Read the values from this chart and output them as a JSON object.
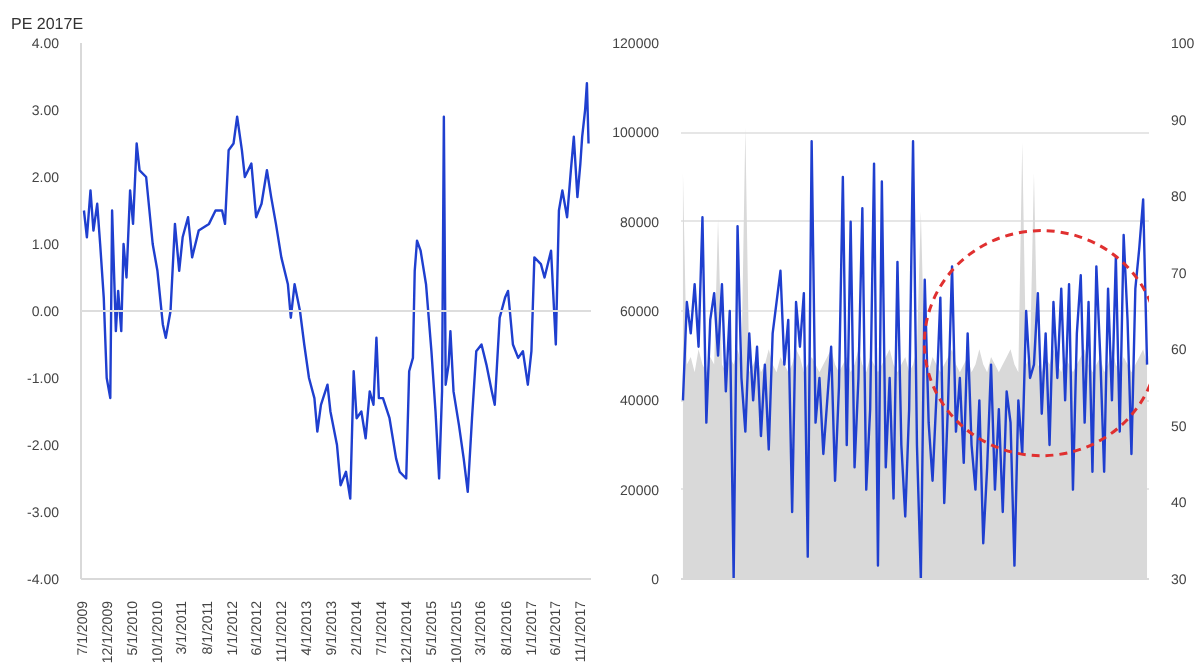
{
  "chart_data": [
    {
      "type": "line",
      "title": "PE 2017E",
      "x": [
        "2009-07-01",
        "2009-07-19",
        "2009-08-10",
        "2009-08-28",
        "2009-09-20",
        "2009-10-08",
        "2009-10-30",
        "2009-11-17",
        "2009-12-09",
        "2009-12-20",
        "2010-01-12",
        "2010-01-26",
        "2010-02-14",
        "2010-02-28",
        "2010-03-18",
        "2010-04-09",
        "2010-04-27",
        "2010-05-19",
        "2010-06-06",
        "2010-07-16",
        "2010-08-25",
        "2010-09-23",
        "2010-10-26",
        "2010-11-13",
        "2010-12-12",
        "2011-01-08",
        "2011-02-03",
        "2011-02-24",
        "2011-03-29",
        "2011-04-23",
        "2011-06-02",
        "2011-08-04",
        "2011-09-13",
        "2011-10-23",
        "2011-11-10",
        "2011-12-02",
        "2012-01-01",
        "2012-01-23",
        "2012-02-21",
        "2012-03-10",
        "2012-04-19",
        "2012-05-18",
        "2012-06-20",
        "2012-07-23",
        "2012-08-18",
        "2012-09-16",
        "2012-10-19",
        "2012-11-28",
        "2012-12-16",
        "2013-01-08",
        "2013-02-10",
        "2013-03-08",
        "2013-04-06",
        "2013-05-09",
        "2013-05-27",
        "2013-06-18",
        "2013-07-28",
        "2013-08-15",
        "2013-09-24",
        "2013-10-16",
        "2013-11-18",
        "2013-12-14",
        "2014-01-04",
        "2014-01-22",
        "2014-02-20",
        "2014-03-18",
        "2014-04-12",
        "2014-05-05",
        "2014-05-23",
        "2014-06-07",
        "2014-07-02",
        "2014-08-11",
        "2014-09-20",
        "2014-10-12",
        "2014-11-21",
        "2014-12-09",
        "2015-01-01",
        "2015-01-12",
        "2015-01-26",
        "2015-02-17",
        "2015-03-22",
        "2015-04-24",
        "2015-05-19",
        "2015-06-10",
        "2015-06-28",
        "2015-07-09",
        "2015-07-20",
        "2015-08-07",
        "2015-08-18",
        "2015-09-06",
        "2015-10-09",
        "2015-11-07",
        "2015-12-02",
        "2015-12-28",
        "2016-01-23",
        "2016-02-24",
        "2016-03-25",
        "2016-04-27",
        "2016-05-15",
        "2016-06-14",
        "2016-07-17",
        "2016-08-04",
        "2016-09-03",
        "2016-10-05",
        "2016-11-03",
        "2016-12-03",
        "2016-12-25",
        "2017-01-12",
        "2017-02-21",
        "2017-03-15",
        "2017-04-24",
        "2017-05-23",
        "2017-06-11",
        "2017-07-02",
        "2017-07-31",
        "2017-08-23",
        "2017-09-10",
        "2017-10-02",
        "2017-10-20",
        "2017-10-31",
        "2017-11-18",
        "2017-11-29",
        "2017-12-09"
      ],
      "series": [
        {
          "color": "#1f3fcf",
          "values": [
            1.5,
            1.1,
            1.8,
            1.2,
            1.6,
            1.0,
            0.2,
            -1.0,
            -1.3,
            1.5,
            -0.3,
            0.3,
            -0.3,
            1.0,
            0.5,
            1.8,
            1.3,
            2.5,
            2.1,
            2.0,
            1.0,
            0.6,
            -0.2,
            -0.4,
            0.0,
            1.3,
            0.6,
            1.1,
            1.4,
            0.8,
            1.2,
            1.3,
            1.5,
            1.5,
            1.3,
            2.4,
            2.5,
            2.9,
            2.4,
            2.0,
            2.2,
            1.4,
            1.6,
            2.1,
            1.7,
            1.3,
            0.8,
            0.4,
            -0.1,
            0.4,
            0.0,
            -0.5,
            -1.0,
            -1.3,
            -1.8,
            -1.4,
            -1.1,
            -1.5,
            -2.0,
            -2.6,
            -2.4,
            -2.8,
            -0.9,
            -1.6,
            -1.5,
            -1.9,
            -1.2,
            -1.4,
            -0.4,
            -1.3,
            -1.3,
            -1.6,
            -2.2,
            -2.4,
            -2.5,
            -0.9,
            -0.7,
            0.6,
            1.05,
            0.9,
            0.4,
            -0.6,
            -1.5,
            -2.5,
            -1.2,
            2.9,
            -1.1,
            -0.8,
            -0.3,
            -1.2,
            -1.7,
            -2.2,
            -2.7,
            -1.6,
            -0.6,
            -0.5,
            -0.8,
            -1.2,
            -1.4,
            -0.1,
            0.2,
            0.3,
            -0.5,
            -0.7,
            -0.6,
            -1.1,
            -0.6,
            0.8,
            0.7,
            0.5,
            0.9,
            -0.5,
            1.5,
            1.8,
            1.4,
            2.1,
            2.6,
            1.7,
            2.2,
            2.6,
            3.0,
            3.4,
            2.5
          ]
        }
      ],
      "xlim": [
        "2009-06-13",
        "2017-12-24"
      ],
      "xticks": [
        {
          "value": "2009-07-01",
          "label": "7/1/2009"
        },
        {
          "value": "2009-12-01",
          "label": "12/1/2009"
        },
        {
          "value": "2010-05-01",
          "label": "5/1/2010"
        },
        {
          "value": "2010-10-01",
          "label": "10/1/2010"
        },
        {
          "value": "2011-03-01",
          "label": "3/1/2011"
        },
        {
          "value": "2011-08-01",
          "label": "8/1/2011"
        },
        {
          "value": "2012-01-01",
          "label": "1/1/2012"
        },
        {
          "value": "2012-06-01",
          "label": "6/1/2012"
        },
        {
          "value": "2012-11-01",
          "label": "11/1/2012"
        },
        {
          "value": "2013-04-01",
          "label": "4/1/2013"
        },
        {
          "value": "2013-09-01",
          "label": "9/1/2013"
        },
        {
          "value": "2014-02-01",
          "label": "2/1/2014"
        },
        {
          "value": "2014-07-01",
          "label": "7/1/2014"
        },
        {
          "value": "2014-12-01",
          "label": "12/1/2014"
        },
        {
          "value": "2015-05-01",
          "label": "5/1/2015"
        },
        {
          "value": "2015-10-01",
          "label": "10/1/2015"
        },
        {
          "value": "2016-03-01",
          "label": "3/1/2016"
        },
        {
          "value": "2016-08-01",
          "label": "8/1/2016"
        },
        {
          "value": "2017-01-01",
          "label": "1/1/2017"
        },
        {
          "value": "2017-06-01",
          "label": "6/1/2017"
        },
        {
          "value": "2017-11-01",
          "label": "11/1/2017"
        }
      ],
      "ylim": [
        -4,
        4
      ],
      "yticks": [
        {
          "value": 4,
          "label": "4.00"
        },
        {
          "value": 3,
          "label": "3.00"
        },
        {
          "value": 2,
          "label": "2.00"
        },
        {
          "value": 1,
          "label": "1.00"
        },
        {
          "value": 0,
          "label": "0.00"
        },
        {
          "value": -1,
          "label": "-1.00"
        },
        {
          "value": -2,
          "label": "-2.00"
        },
        {
          "value": -3,
          "label": "-3.00"
        },
        {
          "value": -4,
          "label": "-4.00"
        }
      ],
      "ref_lines": [
        {
          "axis": "y",
          "value": 0,
          "color": "#dddddd"
        }
      ],
      "grid": false
    },
    {
      "type": "line",
      "categories": [
        null,
        null,
        null,
        null,
        null,
        null,
        null,
        null,
        null,
        null,
        null,
        null,
        null,
        null,
        null,
        null,
        null,
        null,
        null,
        null,
        null,
        null,
        null,
        null,
        null,
        null,
        null,
        null,
        null,
        null,
        null,
        null,
        null,
        null,
        null,
        null,
        null,
        null,
        null,
        null,
        null,
        null,
        null,
        null,
        null,
        null,
        null,
        null,
        null,
        null,
        null,
        null,
        null,
        null,
        null,
        null,
        null,
        null,
        null,
        null,
        null,
        null,
        null,
        null,
        null,
        null,
        null,
        null,
        null,
        null,
        null,
        null,
        null,
        null,
        null,
        null,
        null,
        null,
        null,
        null,
        null,
        null,
        null,
        null,
        null,
        null,
        null,
        null,
        null,
        null,
        null,
        null,
        null,
        null,
        null,
        null,
        null,
        null,
        null,
        null,
        null,
        null,
        null,
        null,
        null,
        null,
        null,
        null,
        null,
        null,
        null,
        null,
        null,
        null,
        null,
        null,
        null,
        null,
        null,
        null
      ],
      "series": [
        {
          "type": "area",
          "axis": "y2",
          "color": "#d9d9d9",
          "values": [
            83,
            58,
            59,
            57,
            60,
            58,
            57,
            59,
            58,
            77,
            58,
            57,
            59,
            58,
            60,
            58,
            89,
            57,
            58,
            59,
            57,
            58,
            60,
            58,
            57,
            59,
            58,
            57,
            58,
            60,
            59,
            57,
            58,
            59,
            58,
            57,
            58,
            59,
            60,
            58,
            57,
            58,
            59,
            57,
            58,
            60,
            58,
            57,
            59,
            58,
            57,
            58,
            59,
            60,
            58,
            57,
            58,
            59,
            57,
            58,
            60,
            78,
            58,
            57,
            59,
            58,
            57,
            58,
            59,
            60,
            58,
            57,
            58,
            59,
            57,
            58,
            60,
            58,
            57,
            59,
            58,
            57,
            58,
            59,
            60,
            58,
            57,
            87,
            58,
            59,
            83,
            58,
            57,
            59,
            58,
            60,
            58,
            57,
            59,
            58,
            57,
            58,
            59,
            60,
            58,
            57,
            58,
            59,
            57,
            58,
            60,
            58,
            57,
            59,
            58,
            57,
            58,
            59,
            60,
            58
          ]
        },
        {
          "type": "line",
          "color": "#1f3fcf",
          "values": [
            40000,
            62000,
            55000,
            66000,
            52000,
            81000,
            35000,
            58000,
            64000,
            50000,
            66000,
            42000,
            60000,
            0,
            79000,
            45000,
            33000,
            55000,
            40000,
            52000,
            32000,
            48000,
            29000,
            55000,
            62000,
            69000,
            48000,
            58000,
            15000,
            62000,
            52000,
            64000,
            5000,
            98000,
            35000,
            45000,
            28000,
            40000,
            52000,
            22000,
            43000,
            90000,
            30000,
            80000,
            25000,
            45000,
            83000,
            20000,
            38000,
            93000,
            3000,
            89000,
            25000,
            45000,
            18000,
            71000,
            30000,
            14000,
            38000,
            98000,
            30000,
            0,
            67000,
            35000,
            22000,
            41000,
            63000,
            17000,
            40000,
            70000,
            33000,
            45000,
            26000,
            55000,
            30000,
            20000,
            40000,
            8000,
            25000,
            48000,
            20000,
            38000,
            15000,
            42000,
            35000,
            3000,
            40000,
            28000,
            60000,
            45000,
            48000,
            64000,
            37000,
            55000,
            30000,
            62000,
            45000,
            65000,
            40000,
            66000,
            20000,
            55000,
            68000,
            35000,
            62000,
            24000,
            70000,
            50000,
            24000,
            65000,
            40000,
            72000,
            33000,
            77000,
            58000,
            28000,
            65000,
            74000,
            85000,
            48000
          ]
        }
      ],
      "ylim": [
        0,
        120000
      ],
      "yticks": [
        0,
        20000,
        40000,
        60000,
        80000,
        100000,
        120000
      ],
      "y2lim": [
        30,
        100
      ],
      "y2ticks": [
        30,
        40,
        50,
        60,
        70,
        80,
        90,
        100
      ],
      "grid": "y",
      "tick_labels": "y"
    }
  ]
}
